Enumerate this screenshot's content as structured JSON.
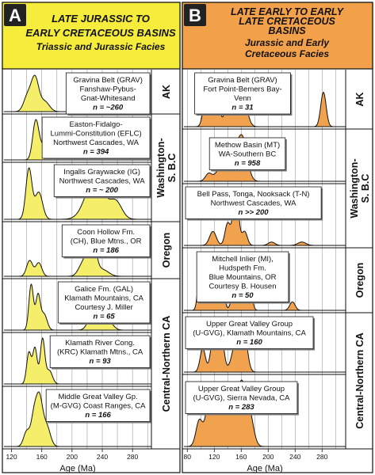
{
  "colors": {
    "panel_a_header": "#f6ec3c",
    "panel_a_fill": "#f4ee6a",
    "panel_b_header": "#f2a04a",
    "panel_b_fill": "#f0a24e",
    "grid": "#9a9a9a",
    "stroke": "#111111"
  },
  "chart_data": [
    {
      "type": "area",
      "panel_letter": "A",
      "title": "LATE JURASSIC TO EARLY CRETACEOUS BASINS",
      "subtitle": "Triassic and Jurassic Facies",
      "xlabel": "Age (Ma)",
      "xlim": [
        110,
        305
      ],
      "xticks": [
        120,
        160,
        200,
        240,
        280
      ],
      "grid": true,
      "region_labels": [
        {
          "label": "AK",
          "rows": [
            0,
            0
          ]
        },
        {
          "label": "Washington-S. B.C",
          "rows": [
            1,
            2
          ]
        },
        {
          "label": "Oregon",
          "rows": [
            3,
            3
          ]
        },
        {
          "label": "Central-Northern CA",
          "rows": [
            4,
            6
          ]
        }
      ],
      "series": [
        {
          "name": "Gravina Belt (GRAV)",
          "lines": [
            "Gravina Belt (GRAV)",
            "Fanshaw-Pybus-",
            "Gnat-Whitesand"
          ],
          "n": "n = ~260",
          "peaks": [
            [
              151,
              1.0,
              5
            ],
            [
              141,
              0.45,
              5
            ],
            [
              164,
              0.3,
              6
            ]
          ]
        },
        {
          "name": "Easton-Fidalgo-Lummi-Constitution (EFLC)",
          "lines": [
            "Easton-Fidalgo-",
            "Lummi-Constitution (EFLC)",
            "Northwest Cascades, WA"
          ],
          "n": "n = 394",
          "peaks": [
            [
              152,
              1.0,
              4
            ],
            [
              162,
              0.35,
              5
            ]
          ]
        },
        {
          "name": "Ingalls Graywacke (IG)",
          "lines": [
            "Ingalls Graywacke (IG)",
            "Northwest Cascades, WA"
          ],
          "n": "n = ~ 200",
          "peaks": [
            [
              143,
              0.75,
              4
            ],
            [
              156,
              0.4,
              5
            ],
            [
              230,
              0.6,
              12
            ],
            [
              258,
              0.25,
              8
            ]
          ]
        },
        {
          "name": "Coon Hollow Fm. (CH)",
          "lines": [
            "Coon Hollow Fm.",
            "(CH), Blue Mtns., OR"
          ],
          "n": "n = 186",
          "peaks": [
            [
              144,
              0.35,
              4
            ],
            [
              156,
              0.3,
              4
            ],
            [
              226,
              1.0,
              5
            ],
            [
              215,
              0.3,
              6
            ],
            [
              240,
              0.15,
              8
            ]
          ]
        },
        {
          "name": "Galice Fm. (GAL)",
          "lines": [
            "Galice Fm. (GAL)",
            "Klamath Mountains, CA",
            "Courtesy J. Miller"
          ],
          "n": "n = 65",
          "peaks": [
            [
              146,
              1.0,
              3
            ],
            [
              155,
              0.75,
              3
            ],
            [
              163,
              0.35,
              4
            ],
            [
              228,
              0.4,
              6
            ],
            [
              248,
              0.2,
              6
            ]
          ]
        },
        {
          "name": "Klamath River Cong. (KRC)",
          "lines": [
            "Klamath River Cong.",
            "(KRC) Klamath Mtns., CA"
          ],
          "n": "n = 93",
          "peaks": [
            [
              143,
              0.7,
              3
            ],
            [
              151,
              0.8,
              3
            ],
            [
              161,
              1.0,
              3
            ],
            [
              170,
              0.3,
              4
            ]
          ]
        },
        {
          "name": "Middle Great Valley Gp. (M-GVG)",
          "lines": [
            "Middle Great Valley Gp.",
            "(M-GVG) Coast Ranges, CA"
          ],
          "n": "n = 166",
          "peaks": [
            [
              140,
              0.35,
              4
            ],
            [
              150,
              0.75,
              4
            ],
            [
              157,
              1.0,
              4
            ],
            [
              166,
              0.5,
              5
            ]
          ]
        }
      ]
    },
    {
      "type": "area",
      "panel_letter": "B",
      "title": "LATE EARLY TO EARLY LATE CRETACEOUS BASINS",
      "subtitle": "Jurassic and Early Cretaceous Facies",
      "xlabel": "Age (Ma)",
      "xlim": [
        75,
        315
      ],
      "xticks": [
        80,
        120,
        160,
        200,
        240,
        280
      ],
      "grid": true,
      "region_labels": [
        {
          "label": "AK",
          "rows": [
            0,
            0
          ]
        },
        {
          "label": "Washington-S. B.C",
          "rows": [
            1,
            2
          ]
        },
        {
          "label": "Oregon",
          "rows": [
            3,
            3
          ]
        },
        {
          "label": "Central-Northern CA",
          "rows": [
            4,
            5
          ]
        }
      ],
      "series": [
        {
          "name": "Gravina Belt (GRAV)",
          "lines": [
            "Gravina Belt (GRAV)",
            "Fort Point-Bemers Bay-",
            "Venn"
          ],
          "n": "n = 31",
          "peaks": [
            [
              107,
              0.55,
              4
            ],
            [
              117,
              0.4,
              3
            ],
            [
              124,
              0.65,
              4
            ],
            [
              140,
              0.45,
              5
            ],
            [
              151,
              1.0,
              5
            ],
            [
              163,
              0.6,
              6
            ],
            [
              282,
              0.75,
              4
            ]
          ]
        },
        {
          "name": "Methow Basin (MT)",
          "lines": [
            "Methow Basin (MT)",
            "WA-Southern BC"
          ],
          "n": "n = 958",
          "peaks": [
            [
              112,
              0.2,
              5
            ],
            [
              128,
              0.3,
              6
            ],
            [
              148,
              0.65,
              8
            ],
            [
              162,
              1.0,
              7
            ]
          ]
        },
        {
          "name": "Bell Pass, Tonga, Nooksack (T-N)",
          "lines": [
            "Bell Pass, Tonga, Nooksack (T-N)",
            "Northwest Cascades, WA"
          ],
          "n": "n >> 200",
          "peaks": [
            [
              118,
              0.25,
              5
            ],
            [
              140,
              0.4,
              4
            ],
            [
              152,
              1.0,
              4
            ],
            [
              165,
              0.25,
              4
            ],
            [
              205,
              0.06,
              5
            ],
            [
              250,
              0.06,
              6
            ]
          ]
        },
        {
          "name": "Mitchell Inlier (MI), Hudspeth Fm.",
          "lines": [
            "Mitchell Inlier (MI),",
            "Hudspeth Fm.",
            "Blue Mountains, OR",
            "Courtesy B. Housen"
          ],
          "n": "n = 50",
          "peaks": [
            [
              98,
              0.55,
              3
            ],
            [
              107,
              0.75,
              3
            ],
            [
              120,
              0.5,
              4
            ],
            [
              130,
              0.65,
              4
            ],
            [
              150,
              0.45,
              4
            ],
            [
              161,
              0.85,
              3
            ],
            [
              170,
              1.0,
              4
            ],
            [
              236,
              0.15,
              4
            ]
          ]
        },
        {
          "name": "Upper Great Valley Group (U-GVG), Klamath Mountains",
          "lines": [
            "Upper Great Valley Group",
            "(U-GVG), Klamath Mountains, CA"
          ],
          "n": "n = 160",
          "peaks": [
            [
              103,
              0.45,
              4
            ],
            [
              118,
              0.55,
              4
            ],
            [
              128,
              1.0,
              5
            ],
            [
              152,
              0.55,
              6
            ],
            [
              164,
              0.75,
              5
            ]
          ]
        },
        {
          "name": "Upper Great Valley Group (U-GVG), Sierra Nevada",
          "lines": [
            "Upper Great Valley Group",
            "(U-GVG), Sierra Nevada, CA"
          ],
          "n": "n = 283",
          "peaks": [
            [
              98,
              0.4,
              5
            ],
            [
              112,
              0.65,
              5
            ],
            [
              126,
              0.8,
              6
            ],
            [
              143,
              0.65,
              7
            ],
            [
              160,
              0.9,
              6
            ],
            [
              172,
              0.5,
              6
            ]
          ]
        }
      ]
    }
  ]
}
